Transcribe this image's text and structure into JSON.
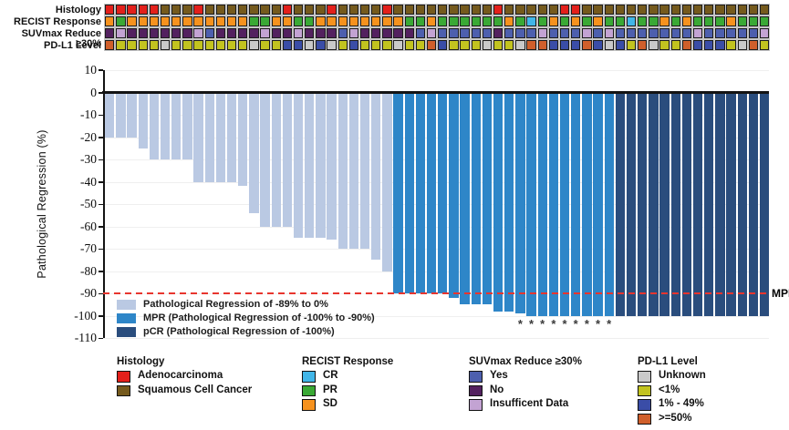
{
  "figure": {
    "background": "#ffffff"
  },
  "tracks": {
    "palette": {
      "R": "#e3201b",
      "B": "#755a1d",
      "O": "#f6921e",
      "G": "#3aa935",
      "C": "#41b6e8",
      "Y": "#4d5fae",
      "N": "#53215f",
      "I": "#c3a3d3",
      "U": "#c9c9c9",
      "Y1": "#c2c31f",
      "B1": "#3a4da7",
      "O5": "#d05f2b"
    },
    "rows": [
      {
        "label": "Histology",
        "codes": [
          "R",
          "R",
          "R",
          "R",
          "R",
          "B",
          "B",
          "B",
          "R",
          "B",
          "B",
          "B",
          "B",
          "B",
          "B",
          "B",
          "R",
          "B",
          "B",
          "B",
          "R",
          "B",
          "B",
          "B",
          "B",
          "R",
          "B",
          "B",
          "B",
          "B",
          "B",
          "B",
          "B",
          "B",
          "B",
          "R",
          "B",
          "B",
          "B",
          "B",
          "B",
          "R",
          "R",
          "B",
          "B",
          "B",
          "B",
          "B",
          "B",
          "B",
          "B",
          "B",
          "B",
          "B",
          "B",
          "B",
          "B",
          "B",
          "B",
          "B"
        ]
      },
      {
        "label": "RECIST Response",
        "codes": [
          "O",
          "G",
          "O",
          "O",
          "O",
          "O",
          "O",
          "O",
          "O",
          "O",
          "O",
          "O",
          "O",
          "G",
          "G",
          "O",
          "O",
          "G",
          "G",
          "O",
          "O",
          "O",
          "O",
          "O",
          "O",
          "O",
          "O",
          "G",
          "G",
          "O",
          "G",
          "G",
          "G",
          "G",
          "G",
          "G",
          "O",
          "G",
          "C",
          "G",
          "O",
          "G",
          "O",
          "G",
          "O",
          "G",
          "G",
          "C",
          "G",
          "G",
          "O",
          "G",
          "O",
          "G",
          "G",
          "G",
          "O",
          "G",
          "G",
          "G"
        ]
      },
      {
        "label": "SUVmax Reduce ≥30%",
        "codes": [
          "N",
          "I",
          "N",
          "N",
          "N",
          "N",
          "N",
          "N",
          "I",
          "Y",
          "N",
          "N",
          "N",
          "N",
          "I",
          "N",
          "N",
          "I",
          "N",
          "N",
          "N",
          "Y",
          "I",
          "N",
          "N",
          "N",
          "N",
          "N",
          "Y",
          "I",
          "Y",
          "Y",
          "Y",
          "Y",
          "Y",
          "N",
          "Y",
          "Y",
          "Y",
          "I",
          "Y",
          "Y",
          "Y",
          "I",
          "Y",
          "I",
          "Y",
          "Y",
          "Y",
          "Y",
          "Y",
          "Y",
          "Y",
          "I",
          "Y",
          "Y",
          "Y",
          "Y",
          "Y",
          "I"
        ]
      },
      {
        "label": "PD-L1 Level",
        "codes": [
          "O5",
          "Y1",
          "Y1",
          "Y1",
          "Y1",
          "U",
          "Y1",
          "Y1",
          "Y1",
          "Y1",
          "Y1",
          "Y1",
          "Y1",
          "U",
          "Y1",
          "Y1",
          "B1",
          "B1",
          "U",
          "B1",
          "U",
          "Y1",
          "B1",
          "Y1",
          "Y1",
          "Y1",
          "U",
          "Y1",
          "Y1",
          "O5",
          "B1",
          "Y1",
          "Y1",
          "Y1",
          "U",
          "Y1",
          "Y1",
          "U",
          "O5",
          "O5",
          "B1",
          "B1",
          "B1",
          "O5",
          "B1",
          "U",
          "B1",
          "Y1",
          "O5",
          "U",
          "Y1",
          "Y1",
          "O5",
          "B1",
          "B1",
          "B1",
          "Y1",
          "U",
          "O5",
          "Y1"
        ]
      }
    ]
  },
  "chart_data": {
    "type": "bar",
    "title": "",
    "xlabel": "",
    "ylabel": "Pathological Regression (%)",
    "ylim": [
      -110,
      10
    ],
    "yticks": [
      10,
      0,
      -10,
      -20,
      -30,
      -40,
      -50,
      -60,
      -70,
      -80,
      -90,
      -100,
      -110
    ],
    "grid": true,
    "n_bars": 60,
    "values": [
      -20,
      -20,
      -20,
      -25,
      -30,
      -30,
      -30,
      -30,
      -40,
      -40,
      -40,
      -40,
      -42,
      -54,
      -60,
      -60,
      -60,
      -65,
      -65,
      -65,
      -66,
      -70,
      -70,
      -70,
      -75,
      -80,
      -90,
      -90,
      -90,
      -90,
      -90,
      -92,
      -95,
      -95,
      -95,
      -98,
      -98,
      -99,
      -100,
      -100,
      -100,
      -100,
      -100,
      -100,
      -100,
      -100,
      -100,
      -100,
      -100,
      -100,
      -100,
      -100,
      -100,
      -100,
      -100,
      -100,
      -100,
      -100,
      -100,
      -100
    ],
    "segments": [
      {
        "name": "light",
        "count": 26
      },
      {
        "name": "mpr",
        "count": 20
      },
      {
        "name": "pcr",
        "count": 14
      }
    ],
    "series_colors": {
      "light": "#bac9e3",
      "mpr": "#2e86c8",
      "pcr": "#2a4d7d"
    },
    "threshold": {
      "value": -90,
      "label": "MPR",
      "color": "#e8352e"
    },
    "asterisk_columns": [
      38,
      39,
      40,
      41,
      42,
      43,
      44,
      45,
      46
    ],
    "legend_position": "inside-bottom-left",
    "inplot_legend": [
      {
        "series": "light",
        "label": "Pathological Regression of -89% to 0%"
      },
      {
        "series": "mpr",
        "label": "MPR (Pathological Regression of -100% to -90%)"
      },
      {
        "series": "pcr",
        "label": "pCR (Pathological Regression of -100%)"
      }
    ]
  },
  "legend_groups": [
    {
      "title": "Histology",
      "items": [
        {
          "code": "R",
          "label": "Adenocarcinoma"
        },
        {
          "code": "B",
          "label": "Squamous Cell Cancer"
        }
      ]
    },
    {
      "title": "RECIST Response",
      "items": [
        {
          "code": "C",
          "label": "CR"
        },
        {
          "code": "G",
          "label": "PR"
        },
        {
          "code": "O",
          "label": "SD"
        }
      ]
    },
    {
      "title": "SUVmax Reduce ≥30%",
      "items": [
        {
          "code": "Y",
          "label": "Yes"
        },
        {
          "code": "N",
          "label": "No"
        },
        {
          "code": "I",
          "label": "Insufficent Data"
        }
      ]
    },
    {
      "title": "PD-L1 Level",
      "items": [
        {
          "code": "U",
          "label": "Unknown"
        },
        {
          "code": "Y1",
          "label": "<1%"
        },
        {
          "code": "B1",
          "label": "1% - 49%"
        },
        {
          "code": "O5",
          "label": ">=50%"
        }
      ]
    }
  ]
}
